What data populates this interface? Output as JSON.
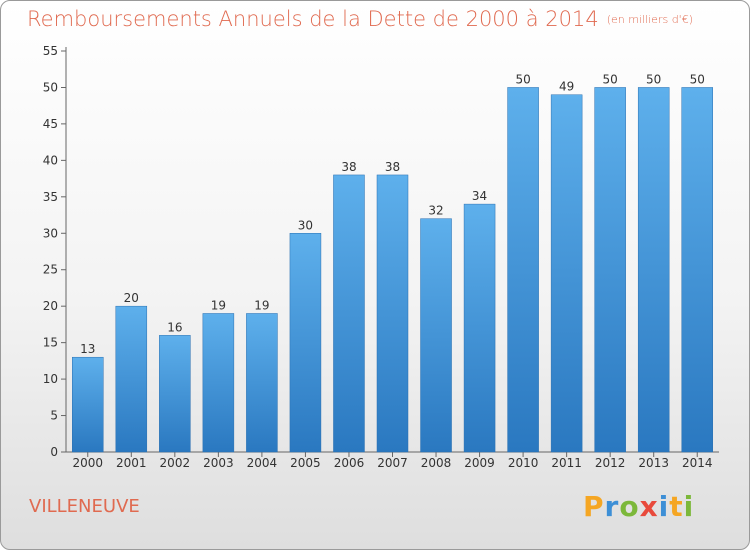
{
  "chart_data": {
    "type": "bar",
    "title": "Remboursements Annuels de la Dette de 2000 à 2014",
    "subtitle": "(en milliers d'€)",
    "categories": [
      "2000",
      "2001",
      "2002",
      "2003",
      "2004",
      "2005",
      "2006",
      "2007",
      "2008",
      "2009",
      "2010",
      "2011",
      "2012",
      "2013",
      "2014"
    ],
    "values": [
      13,
      20,
      16,
      19,
      19,
      30,
      38,
      38,
      32,
      34,
      50,
      49,
      50,
      50,
      50
    ],
    "ylim": [
      0,
      55
    ],
    "yticks": [
      0,
      5,
      10,
      15,
      20,
      25,
      30,
      35,
      40,
      45,
      50,
      55
    ],
    "xlabel": "",
    "ylabel": "",
    "grid": false,
    "bar_color": "#3d8fd6"
  },
  "footer": {
    "city": "VILLENEUVE",
    "brand_letters": [
      "P",
      "r",
      "o",
      "x",
      "i",
      "t",
      "i"
    ],
    "brand_colors": [
      "#f5a623",
      "#3d8fd6",
      "#7cb83a",
      "#e84a3c",
      "#3d8fd6",
      "#f5a623",
      "#7cb83a"
    ]
  }
}
